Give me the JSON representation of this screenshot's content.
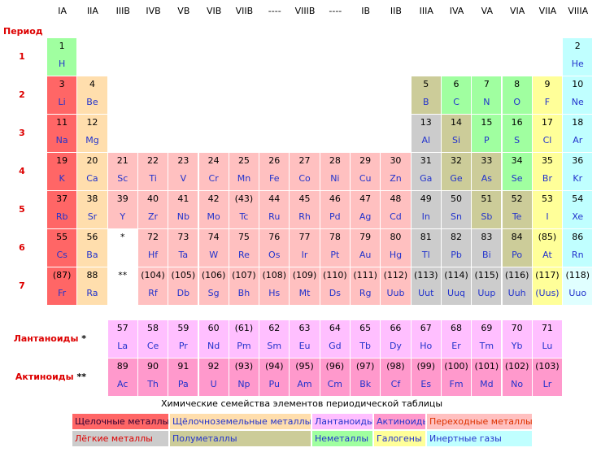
{
  "column_headers": [
    "IA",
    "IIA",
    "IIIB",
    "IVB",
    "VB",
    "VIB",
    "VIIB",
    "----",
    "VIIIB",
    "----",
    "IB",
    "IIB",
    "IIIA",
    "IVA",
    "VA",
    "VIA",
    "VIIA",
    "VIIIA"
  ],
  "period_header": "Период",
  "periods": [
    "1",
    "2",
    "3",
    "4",
    "5",
    "6",
    "7"
  ],
  "rows": [
    [
      {
        "number": "1",
        "symbol": "H",
        "color": "#a0ffa0"
      },
      null,
      null,
      null,
      null,
      null,
      null,
      null,
      null,
      null,
      null,
      null,
      null,
      null,
      null,
      null,
      null,
      {
        "number": "2",
        "symbol": "He",
        "color": "#c0ffff"
      }
    ],
    [
      {
        "number": "3",
        "symbol": "Li",
        "color": "#ff6666"
      },
      {
        "number": "4",
        "symbol": "Be",
        "color": "#ffdead"
      },
      null,
      null,
      null,
      null,
      null,
      null,
      null,
      null,
      null,
      null,
      {
        "number": "5",
        "symbol": "B",
        "color": "#cccc99"
      },
      {
        "number": "6",
        "symbol": "C",
        "color": "#a0ffa0"
      },
      {
        "number": "7",
        "symbol": "N",
        "color": "#a0ffa0"
      },
      {
        "number": "8",
        "symbol": "O",
        "color": "#a0ffa0"
      },
      {
        "number": "9",
        "symbol": "F",
        "color": "#ffff99"
      },
      {
        "number": "10",
        "symbol": "Ne",
        "color": "#c0ffff"
      }
    ],
    [
      {
        "number": "11",
        "symbol": "Na",
        "color": "#ff6666"
      },
      {
        "number": "12",
        "symbol": "Mg",
        "color": "#ffdead"
      },
      null,
      null,
      null,
      null,
      null,
      null,
      null,
      null,
      null,
      null,
      {
        "number": "13",
        "symbol": "Al",
        "color": "#cccccc"
      },
      {
        "number": "14",
        "symbol": "Si",
        "color": "#cccc99"
      },
      {
        "number": "15",
        "symbol": "P",
        "color": "#a0ffa0"
      },
      {
        "number": "16",
        "symbol": "S",
        "color": "#a0ffa0"
      },
      {
        "number": "17",
        "symbol": "Cl",
        "color": "#ffff99"
      },
      {
        "number": "18",
        "symbol": "Ar",
        "color": "#c0ffff"
      }
    ],
    [
      {
        "number": "19",
        "symbol": "K",
        "color": "#ff6666"
      },
      {
        "number": "20",
        "symbol": "Ca",
        "color": "#ffdead"
      },
      {
        "number": "21",
        "symbol": "Sc",
        "color": "#ffc0c0"
      },
      {
        "number": "22",
        "symbol": "Ti",
        "color": "#ffc0c0"
      },
      {
        "number": "23",
        "symbol": "V",
        "color": "#ffc0c0"
      },
      {
        "number": "24",
        "symbol": "Cr",
        "color": "#ffc0c0"
      },
      {
        "number": "25",
        "symbol": "Mn",
        "color": "#ffc0c0"
      },
      {
        "number": "26",
        "symbol": "Fe",
        "color": "#ffc0c0"
      },
      {
        "number": "27",
        "symbol": "Co",
        "color": "#ffc0c0"
      },
      {
        "number": "28",
        "symbol": "Ni",
        "color": "#ffc0c0"
      },
      {
        "number": "29",
        "symbol": "Cu",
        "color": "#ffc0c0"
      },
      {
        "number": "30",
        "symbol": "Zn",
        "color": "#ffc0c0"
      },
      {
        "number": "31",
        "symbol": "Ga",
        "color": "#cccccc"
      },
      {
        "number": "32",
        "symbol": "Ge",
        "color": "#cccc99"
      },
      {
        "number": "33",
        "symbol": "As",
        "color": "#cccc99"
      },
      {
        "number": "34",
        "symbol": "Se",
        "color": "#a0ffa0"
      },
      {
        "number": "35",
        "symbol": "Br",
        "color": "#ffff99"
      },
      {
        "number": "36",
        "symbol": "Kr",
        "color": "#c0ffff"
      }
    ],
    [
      {
        "number": "37",
        "symbol": "Rb",
        "color": "#ff6666"
      },
      {
        "number": "38",
        "symbol": "Sr",
        "color": "#ffdead"
      },
      {
        "number": "39",
        "symbol": "Y",
        "color": "#ffc0c0"
      },
      {
        "number": "40",
        "symbol": "Zr",
        "color": "#ffc0c0"
      },
      {
        "number": "41",
        "symbol": "Nb",
        "color": "#ffc0c0"
      },
      {
        "number": "42",
        "symbol": "Mo",
        "color": "#ffc0c0"
      },
      {
        "number": "(43)",
        "symbol": "Tc",
        "color": "#ffc0c0"
      },
      {
        "number": "44",
        "symbol": "Ru",
        "color": "#ffc0c0"
      },
      {
        "number": "45",
        "symbol": "Rh",
        "color": "#ffc0c0"
      },
      {
        "number": "46",
        "symbol": "Pd",
        "color": "#ffc0c0"
      },
      {
        "number": "47",
        "symbol": "Ag",
        "color": "#ffc0c0"
      },
      {
        "number": "48",
        "symbol": "Cd",
        "color": "#ffc0c0"
      },
      {
        "number": "49",
        "symbol": "In",
        "color": "#cccccc"
      },
      {
        "number": "50",
        "symbol": "Sn",
        "color": "#cccccc"
      },
      {
        "number": "51",
        "symbol": "Sb",
        "color": "#cccc99"
      },
      {
        "number": "52",
        "symbol": "Te",
        "color": "#cccc99"
      },
      {
        "number": "53",
        "symbol": "I",
        "color": "#ffff99"
      },
      {
        "number": "54",
        "symbol": "Xe",
        "color": "#c0ffff"
      }
    ],
    [
      {
        "number": "55",
        "symbol": "Cs",
        "color": "#ff6666"
      },
      {
        "number": "56",
        "symbol": "Ba",
        "color": "#ffdead"
      },
      {
        "number": "*",
        "color": "#ffffff"
      },
      {
        "number": "72",
        "symbol": "Hf",
        "color": "#ffc0c0"
      },
      {
        "number": "73",
        "symbol": "Ta",
        "color": "#ffc0c0"
      },
      {
        "number": "74",
        "symbol": "W",
        "color": "#ffc0c0"
      },
      {
        "number": "75",
        "symbol": "Re",
        "color": "#ffc0c0"
      },
      {
        "number": "76",
        "symbol": "Os",
        "color": "#ffc0c0"
      },
      {
        "number": "77",
        "symbol": "Ir",
        "color": "#ffc0c0"
      },
      {
        "number": "78",
        "symbol": "Pt",
        "color": "#ffc0c0"
      },
      {
        "number": "79",
        "symbol": "Au",
        "color": "#ffc0c0"
      },
      {
        "number": "80",
        "symbol": "Hg",
        "color": "#ffc0c0"
      },
      {
        "number": "81",
        "symbol": "Tl",
        "color": "#cccccc"
      },
      {
        "number": "82",
        "symbol": "Pb",
        "color": "#cccccc"
      },
      {
        "number": "83",
        "symbol": "Bi",
        "color": "#cccccc"
      },
      {
        "number": "84",
        "symbol": "Po",
        "color": "#cccc99"
      },
      {
        "number": "(85)",
        "symbol": "At",
        "color": "#ffff99"
      },
      {
        "number": "86",
        "symbol": "Rn",
        "color": "#c0ffff"
      }
    ],
    [
      {
        "number": "(87)",
        "symbol": "Fr",
        "color": "#ff6666"
      },
      {
        "number": "88",
        "symbol": "Ra",
        "color": "#ffdead"
      },
      {
        "number": "**",
        "color": "#ffffff"
      },
      {
        "number": "(104)",
        "symbol": "Rf",
        "color": "#ffc0c0"
      },
      {
        "number": "(105)",
        "symbol": "Db",
        "color": "#ffc0c0"
      },
      {
        "number": "(106)",
        "symbol": "Sg",
        "color": "#ffc0c0"
      },
      {
        "number": "(107)",
        "symbol": "Bh",
        "color": "#ffc0c0"
      },
      {
        "number": "(108)",
        "symbol": "Hs",
        "color": "#ffc0c0"
      },
      {
        "number": "(109)",
        "symbol": "Mt",
        "color": "#ffc0c0"
      },
      {
        "number": "(110)",
        "symbol": "Ds",
        "color": "#ffc0c0"
      },
      {
        "number": "(111)",
        "symbol": "Rg",
        "color": "#ffc0c0"
      },
      {
        "number": "(112)",
        "symbol": "Uub",
        "color": "#ffc0c0"
      },
      {
        "number": "(113)",
        "symbol": "Uut",
        "color": "#cccccc"
      },
      {
        "number": "(114)",
        "symbol": "Uuq",
        "color": "#cccccc"
      },
      {
        "number": "(115)",
        "symbol": "Uup",
        "color": "#cccccc"
      },
      {
        "number": "(116)",
        "symbol": "Uuh",
        "color": "#cccccc"
      },
      {
        "number": "(117)",
        "symbol": "(Uus)",
        "color": "#ffff99"
      },
      {
        "number": "(118)",
        "symbol": "Uuo",
        "color": "#e0ffff"
      }
    ]
  ],
  "series_rows": [
    {
      "label": "Лантаноиды",
      "mark": "*",
      "cells": [
        {
          "number": "57",
          "symbol": "La",
          "color": "#ffbfff"
        },
        {
          "number": "58",
          "symbol": "Ce",
          "color": "#ffbfff"
        },
        {
          "number": "59",
          "symbol": "Pr",
          "color": "#ffbfff"
        },
        {
          "number": "60",
          "symbol": "Nd",
          "color": "#ffbfff"
        },
        {
          "number": "(61)",
          "symbol": "Pm",
          "color": "#ffbfff"
        },
        {
          "number": "62",
          "symbol": "Sm",
          "color": "#ffbfff"
        },
        {
          "number": "63",
          "symbol": "Eu",
          "color": "#ffbfff"
        },
        {
          "number": "64",
          "symbol": "Gd",
          "color": "#ffbfff"
        },
        {
          "number": "65",
          "symbol": "Tb",
          "color": "#ffbfff"
        },
        {
          "number": "66",
          "symbol": "Dy",
          "color": "#ffbfff"
        },
        {
          "number": "67",
          "symbol": "Ho",
          "color": "#ffbfff"
        },
        {
          "number": "68",
          "symbol": "Er",
          "color": "#ffbfff"
        },
        {
          "number": "69",
          "symbol": "Tm",
          "color": "#ffbfff"
        },
        {
          "number": "70",
          "symbol": "Yb",
          "color": "#ffbfff"
        },
        {
          "number": "71",
          "symbol": "Lu",
          "color": "#ffbfff"
        }
      ]
    },
    {
      "label": "Актиноиды",
      "mark": "**",
      "cells": [
        {
          "number": "89",
          "symbol": "Ac",
          "color": "#ff99cc"
        },
        {
          "number": "90",
          "symbol": "Th",
          "color": "#ff99cc"
        },
        {
          "number": "91",
          "symbol": "Pa",
          "color": "#ff99cc"
        },
        {
          "number": "92",
          "symbol": "U",
          "color": "#ff99cc"
        },
        {
          "number": "(93)",
          "symbol": "Np",
          "color": "#ff99cc"
        },
        {
          "number": "(94)",
          "symbol": "Pu",
          "color": "#ff99cc"
        },
        {
          "number": "(95)",
          "symbol": "Am",
          "color": "#ff99cc"
        },
        {
          "number": "(96)",
          "symbol": "Cm",
          "color": "#ff99cc"
        },
        {
          "number": "(97)",
          "symbol": "Bk",
          "color": "#ff99cc"
        },
        {
          "number": "(98)",
          "symbol": "Cf",
          "color": "#ff99cc"
        },
        {
          "number": "(99)",
          "symbol": "Es",
          "color": "#ff99cc"
        },
        {
          "number": "(100)",
          "symbol": "Fm",
          "color": "#ff99cc"
        },
        {
          "number": "(101)",
          "symbol": "Md",
          "color": "#ff99cc"
        },
        {
          "number": "(102)",
          "symbol": "No",
          "color": "#ff99cc"
        },
        {
          "number": "(103)",
          "symbol": "Lr",
          "color": "#ff99cc"
        }
      ]
    }
  ],
  "legend": {
    "title": "Химические семейства элементов периодической таблицы",
    "items": [
      {
        "name": "Щелочные металлы",
        "color": "#ff6666",
        "text_color": "#330033"
      },
      {
        "name": "Щёлочноземельные металлы",
        "color": "#ffdead",
        "text_color": "#2233cc"
      },
      {
        "name": "Лантаноиды",
        "color": "#ffbfff",
        "text_color": "#2233cc"
      },
      {
        "name": "Актиноиды",
        "color": "#ff99cc",
        "text_color": "#2233cc"
      },
      {
        "name": "Переходные металлы",
        "color": "#ffc0c0",
        "text_color": "#dd3300"
      },
      {
        "name": "Лёгкие металлы",
        "color": "#cccccc",
        "text_color": "#dd0000"
      },
      {
        "name": "Полуметаллы",
        "color": "#cccc99",
        "text_color": "#2233cc"
      },
      {
        "name": "Неметаллы",
        "color": "#a0ffa0",
        "text_color": "#2233cc"
      },
      {
        "name": "Галогены",
        "color": "#ffff99",
        "text_color": "#2233cc"
      },
      {
        "name": "Инертные газы",
        "color": "#c0ffff",
        "text_color": "#2233cc"
      }
    ]
  }
}
